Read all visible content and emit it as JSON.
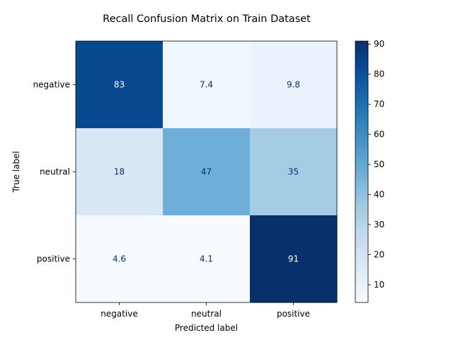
{
  "chart_data": {
    "type": "heatmap",
    "title": "Recall Confusion Matrix on Train Dataset",
    "xlabel": "Predicted label",
    "ylabel": "True label",
    "x_categories": [
      "negative",
      "neutral",
      "positive"
    ],
    "y_categories": [
      "negative",
      "neutral",
      "positive"
    ],
    "values": [
      [
        83,
        7.4,
        9.8
      ],
      [
        18,
        47,
        35
      ],
      [
        4.6,
        4.1,
        91
      ]
    ],
    "value_labels": [
      [
        "83",
        "7.4",
        "9.8"
      ],
      [
        "18",
        "47",
        "35"
      ],
      [
        "4.6",
        "4.1",
        "91"
      ]
    ],
    "colormap": "Blues",
    "vmin": 4.1,
    "vmax": 91,
    "colorbar_ticks": [
      10,
      20,
      30,
      40,
      50,
      60,
      70,
      80,
      90
    ],
    "colorbar_tick_labels": [
      "10",
      "20",
      "30",
      "40",
      "50",
      "60",
      "70",
      "80",
      "90"
    ],
    "grid": false,
    "legend": "colorbar-right"
  }
}
